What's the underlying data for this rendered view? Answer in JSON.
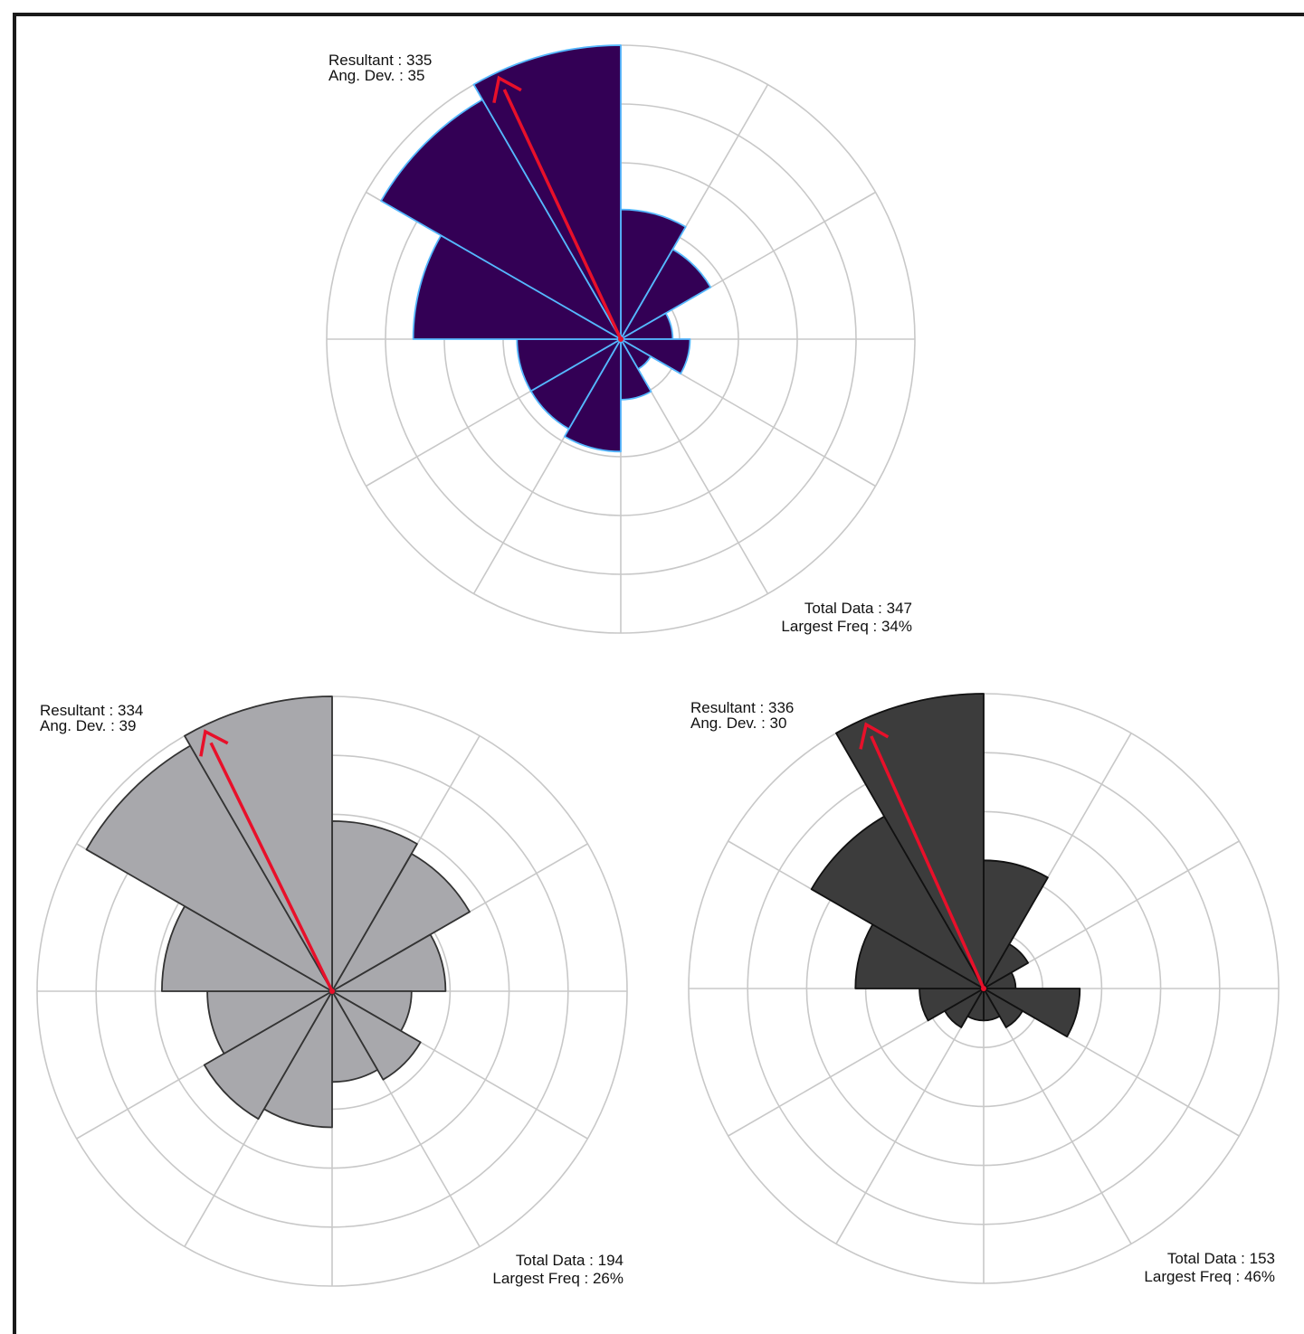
{
  "chart_data": [
    {
      "type": "rose",
      "petal_unit": "percent of total",
      "sector_width_deg": 30,
      "sector_starts_deg": [
        0,
        30,
        60,
        90,
        120,
        150,
        180,
        210,
        240,
        270,
        300,
        330
      ],
      "values": [
        15,
        12,
        6,
        8,
        4,
        7,
        13,
        12,
        12,
        24,
        32,
        34
      ],
      "ring_max": 34,
      "resultant_deg": 335,
      "colors": {
        "fill": "#330055",
        "stroke": "#55b8ff",
        "arrow": "#e8102a",
        "grid": "#c8c8c8"
      },
      "labels": {
        "resultant": "Resultant : 335",
        "ang_dev": "Ang. Dev. : 35",
        "total": "Total Data : 347",
        "largest": "Largest Freq : 34%"
      }
    },
    {
      "type": "rose",
      "petal_unit": "percent of total",
      "sector_width_deg": 30,
      "sector_starts_deg": [
        0,
        30,
        60,
        90,
        120,
        150,
        180,
        210,
        240,
        270,
        300,
        330
      ],
      "values": [
        15,
        14,
        10,
        7,
        9,
        8,
        12,
        13,
        11,
        15,
        25,
        26
      ],
      "ring_max": 26,
      "resultant_deg": 334,
      "colors": {
        "fill": "#a8a8ac",
        "stroke": "#333333",
        "arrow": "#e8102a",
        "grid": "#c8c8c8"
      },
      "labels": {
        "resultant": "Resultant : 334",
        "ang_dev": "Ang. Dev. : 39",
        "total": "Total Data : 194",
        "largest": "Largest Freq : 26%"
      }
    },
    {
      "type": "rose",
      "petal_unit": "percent of total",
      "sector_width_deg": 30,
      "sector_starts_deg": [
        0,
        30,
        60,
        90,
        120,
        150,
        180,
        210,
        240,
        270,
        300,
        330
      ],
      "values": [
        20,
        8,
        5,
        15,
        7,
        5,
        5,
        7,
        10,
        20,
        31,
        46
      ],
      "ring_max": 46,
      "resultant_deg": 336,
      "colors": {
        "fill": "#3c3c3c",
        "stroke": "#111111",
        "arrow": "#e8102a",
        "grid": "#c8c8c8"
      },
      "labels": {
        "resultant": "Resultant : 336",
        "ang_dev": "Ang. Dev. : 30",
        "total": "Total Data : 153",
        "largest": "Largest Freq : 46%"
      }
    }
  ]
}
